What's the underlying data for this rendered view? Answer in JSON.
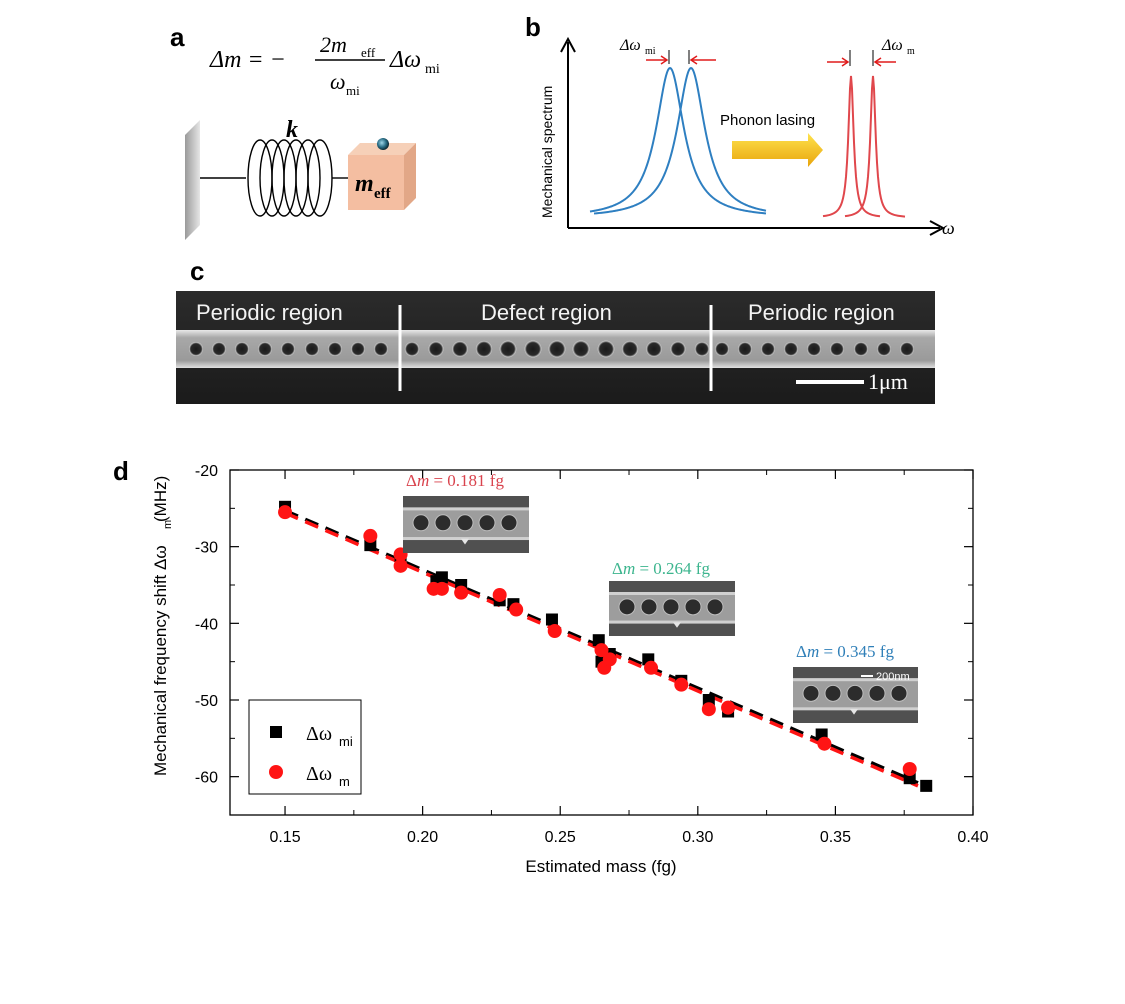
{
  "panels": {
    "a": {
      "label": "a",
      "equation": {
        "lhs": "Δm = −",
        "numerator": "2m",
        "numerator_sub": "eff",
        "denominator": "ω",
        "denominator_sub": "mi",
        "rhs": "Δω",
        "rhs_sub": "mi"
      },
      "spring_label": "k",
      "mass_label": "m",
      "mass_sub": "eff"
    },
    "b": {
      "label": "b",
      "y_axis_label": "Mechanical spectrum",
      "x_axis_label": "ω",
      "arrow_label": "Phonon lasing",
      "left_width_label": "Δω",
      "left_width_sub": "mi",
      "right_width_label": "Δω",
      "right_width_sub": "m",
      "colors": {
        "broad": "#2e7fc1",
        "narrow": "#e0474c",
        "arrow": "#f2b616",
        "marker": "#e01b1b"
      }
    },
    "c": {
      "label": "c",
      "regions": [
        "Periodic region",
        "Defect region",
        "Periodic region"
      ],
      "scale_bar": "1μm"
    },
    "d": {
      "label": "d",
      "insets": [
        {
          "prefix": "Δ",
          "var": "m",
          "value": " = 0.181 fg",
          "color": "#d9434d"
        },
        {
          "prefix": "Δ",
          "var": "m",
          "value": " = 0.264 fg",
          "color": "#3cb58e"
        },
        {
          "prefix": "Δ",
          "var": "m",
          "value": " = 0.345 fg",
          "color": "#2f7fb8"
        }
      ],
      "inset_scale": "200nm"
    }
  },
  "chart_data": {
    "type": "scatter",
    "title": "",
    "xlabel": "Estimated mass (fg)",
    "ylabel": "Mechanical frequency shift Δω",
    "ylabel_sub": "m",
    "ylabel_unit": " (MHz)",
    "xlim": [
      0.13,
      0.4
    ],
    "ylim": [
      -65,
      -20
    ],
    "xticks": [
      "0.15",
      "0.20",
      "0.25",
      "0.30",
      "0.35",
      "0.40"
    ],
    "yticks": [
      "-20",
      "-30",
      "-40",
      "-50",
      "-60"
    ],
    "legend_position": "bottom-left",
    "series": [
      {
        "name": "Δω",
        "name_sub": "mi",
        "marker": "square",
        "color": "#000000",
        "x": [
          0.15,
          0.181,
          0.192,
          0.205,
          0.207,
          0.214,
          0.228,
          0.233,
          0.247,
          0.264,
          0.265,
          0.268,
          0.282,
          0.294,
          0.304,
          0.311,
          0.345,
          0.377,
          0.383
        ],
        "y": [
          -24.8,
          -29.8,
          -32.0,
          -34.5,
          -34.0,
          -35.0,
          -37.0,
          -37.5,
          -39.5,
          -42.2,
          -45.0,
          -44.0,
          -44.7,
          -47.5,
          -50.0,
          -51.5,
          -54.5,
          -60.2,
          -61.2
        ]
      },
      {
        "name": "Δω",
        "name_sub": "m",
        "marker": "circle",
        "color": "#ff1414",
        "x": [
          0.15,
          0.181,
          0.192,
          0.192,
          0.204,
          0.207,
          0.214,
          0.228,
          0.234,
          0.248,
          0.265,
          0.266,
          0.268,
          0.283,
          0.294,
          0.304,
          0.311,
          0.346,
          0.377
        ],
        "y": [
          -25.5,
          -28.6,
          -31.0,
          -32.5,
          -35.5,
          -35.5,
          -36.0,
          -36.3,
          -38.2,
          -41.0,
          -43.5,
          -45.8,
          -44.7,
          -45.8,
          -48.0,
          -51.2,
          -51.0,
          -55.7,
          -59.0
        ]
      },
      {
        "name": "fit Δω",
        "name_sub": "mi",
        "marker": "dashed-line",
        "color": "#000000",
        "x": [
          0.15,
          0.38
        ],
        "y": [
          -25.3,
          -60.8
        ]
      },
      {
        "name": "fit Δω",
        "name_sub": "m",
        "marker": "dashed-line",
        "color": "#ff1414",
        "x": [
          0.15,
          0.38
        ],
        "y": [
          -25.6,
          -61.2
        ]
      }
    ]
  }
}
